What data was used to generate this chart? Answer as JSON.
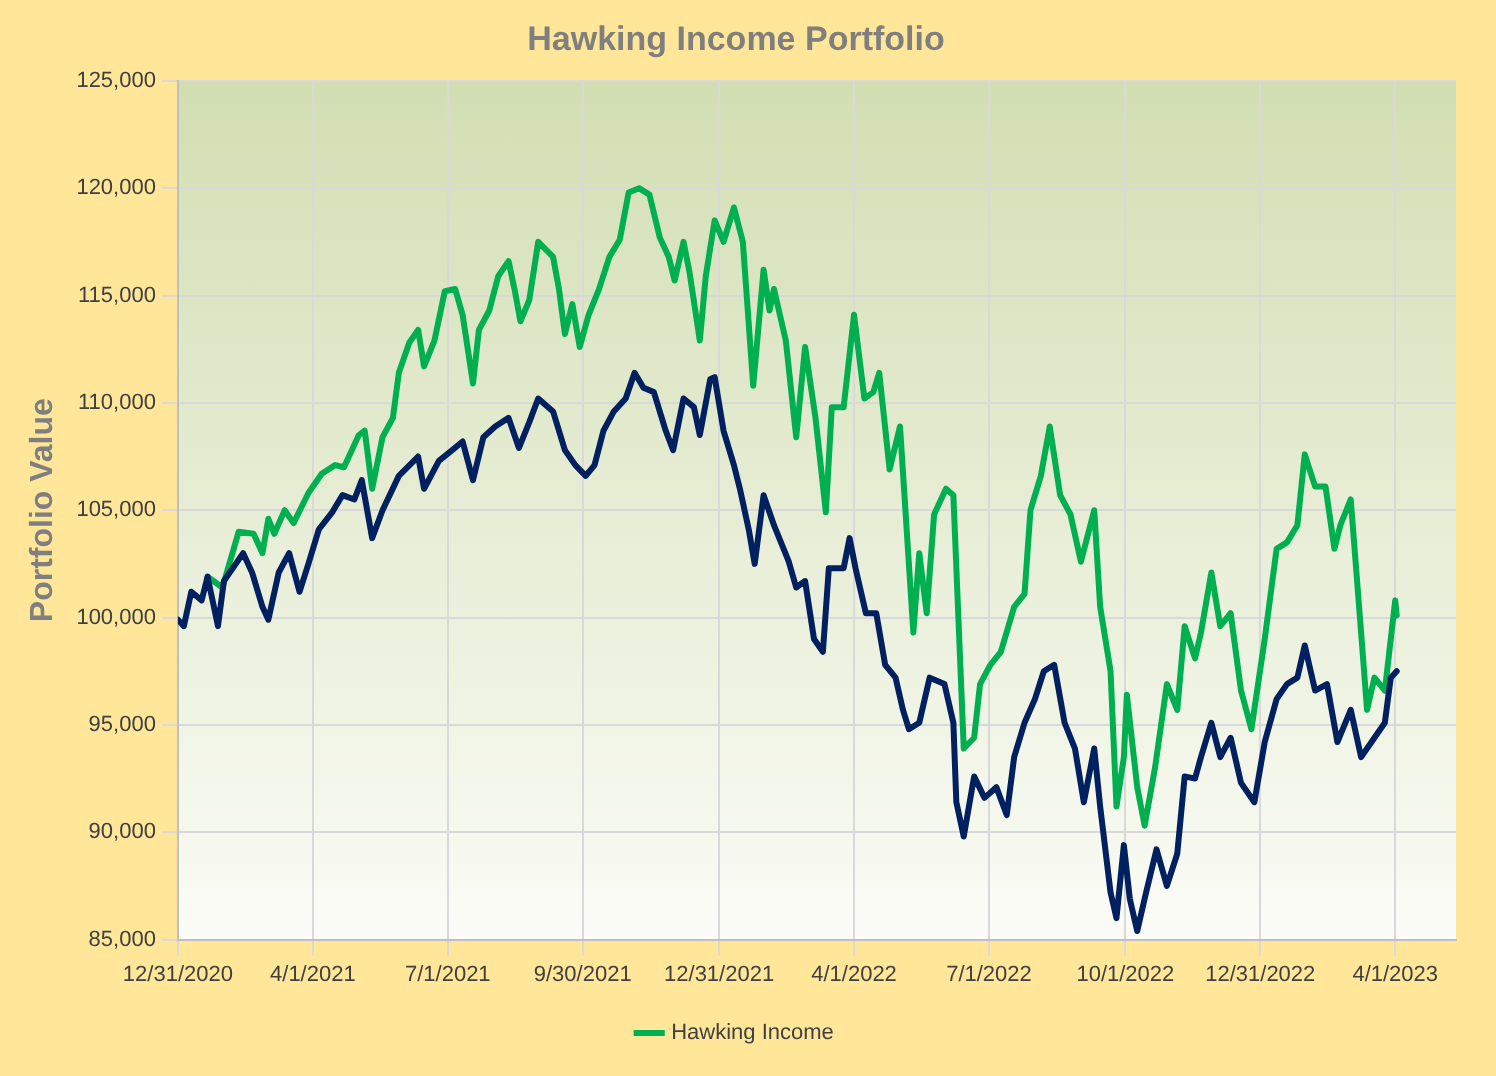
{
  "chart_data": {
    "type": "line",
    "title": "Hawking Income Portfolio",
    "ylabel": "Portfolio Value",
    "xlim": [
      "2020-12-31",
      "2023-05-12"
    ],
    "xticks": [
      {
        "value": "2020-12-31",
        "label": "12/31/2020"
      },
      {
        "value": "2021-04-01",
        "label": "4/1/2021"
      },
      {
        "value": "2021-07-01",
        "label": "7/1/2021"
      },
      {
        "value": "2021-09-30",
        "label": "9/30/2021"
      },
      {
        "value": "2021-12-31",
        "label": "12/31/2021"
      },
      {
        "value": "2022-04-01",
        "label": "4/1/2022"
      },
      {
        "value": "2022-07-01",
        "label": "7/1/2022"
      },
      {
        "value": "2022-10-01",
        "label": "10/1/2022"
      },
      {
        "value": "2022-12-31",
        "label": "12/31/2022"
      },
      {
        "value": "2023-04-01",
        "label": "4/1/2023"
      }
    ],
    "ylim": [
      85000,
      125000
    ],
    "yticks": [
      {
        "value": 85000,
        "label": "85,000"
      },
      {
        "value": 90000,
        "label": "90,000"
      },
      {
        "value": 95000,
        "label": "95,000"
      },
      {
        "value": 100000,
        "label": "100,000"
      },
      {
        "value": 105000,
        "label": "105,000"
      },
      {
        "value": 110000,
        "label": "110,000"
      },
      {
        "value": 115000,
        "label": "115,000"
      },
      {
        "value": 120000,
        "label": "120,000"
      },
      {
        "value": 125000,
        "label": "125,000"
      }
    ],
    "grid": true,
    "legend": "bottom",
    "marker": "none",
    "line_style": "solid",
    "series": [
      {
        "name": "Hawking Income",
        "color": "#00b050",
        "x": [
          "2021-01-20",
          "2021-01-30",
          "2021-02-10",
          "2021-02-20",
          "2021-02-26",
          "2021-03-02",
          "2021-03-06",
          "2021-03-13",
          "2021-03-19",
          "2021-03-29",
          "2021-04-07",
          "2021-04-16",
          "2021-04-22",
          "2021-05-02",
          "2021-05-06",
          "2021-05-11",
          "2021-05-18",
          "2021-05-25",
          "2021-05-29",
          "2021-06-05",
          "2021-06-11",
          "2021-06-15",
          "2021-06-22",
          "2021-06-29",
          "2021-07-06",
          "2021-07-11",
          "2021-07-18",
          "2021-07-22",
          "2021-07-29",
          "2021-08-04",
          "2021-08-11",
          "2021-08-15",
          "2021-08-19",
          "2021-08-25",
          "2021-08-31",
          "2021-09-10",
          "2021-09-14",
          "2021-09-18",
          "2021-09-23",
          "2021-09-28",
          "2021-10-04",
          "2021-10-11",
          "2021-10-18",
          "2021-10-25",
          "2021-10-31",
          "2021-11-07",
          "2021-11-14",
          "2021-11-21",
          "2021-11-27",
          "2021-12-01",
          "2021-12-07",
          "2021-12-11",
          "2021-12-18",
          "2021-12-22",
          "2021-12-28",
          "2022-01-03",
          "2022-01-10",
          "2022-01-16",
          "2022-01-23",
          "2022-01-30",
          "2022-02-03",
          "2022-02-06",
          "2022-02-14",
          "2022-02-21",
          "2022-02-27",
          "2022-03-06",
          "2022-03-13",
          "2022-03-17",
          "2022-03-25",
          "2022-04-01",
          "2022-04-08",
          "2022-04-14",
          "2022-04-18",
          "2022-04-25",
          "2022-05-02",
          "2022-05-11",
          "2022-05-15",
          "2022-05-20",
          "2022-05-25",
          "2022-06-02",
          "2022-06-07",
          "2022-06-14",
          "2022-06-21",
          "2022-06-25",
          "2022-07-02",
          "2022-07-09",
          "2022-07-18",
          "2022-07-25",
          "2022-07-29",
          "2022-08-05",
          "2022-08-11",
          "2022-08-18",
          "2022-08-25",
          "2022-09-01",
          "2022-09-10",
          "2022-09-14",
          "2022-09-21",
          "2022-09-25",
          "2022-09-30",
          "2022-10-02",
          "2022-10-09",
          "2022-10-14",
          "2022-10-21",
          "2022-10-29",
          "2022-11-05",
          "2022-11-10",
          "2022-11-17",
          "2022-11-21",
          "2022-11-28",
          "2022-12-04",
          "2022-12-11",
          "2022-12-18",
          "2022-12-25",
          "2023-01-03",
          "2023-01-11",
          "2023-01-18",
          "2023-01-25",
          "2023-01-30",
          "2023-02-06",
          "2023-02-13",
          "2023-02-19",
          "2023-02-23",
          "2023-03-02",
          "2023-03-09",
          "2023-03-13",
          "2023-03-18",
          "2023-03-25",
          "2023-04-01",
          "2023-04-02"
        ],
        "values": [
          101900,
          101400,
          104000,
          103900,
          103000,
          104600,
          103900,
          105000,
          104400,
          105800,
          106700,
          107100,
          107000,
          108500,
          108700,
          106000,
          108400,
          109300,
          111400,
          112800,
          113400,
          111700,
          112900,
          115200,
          115300,
          114100,
          110900,
          113400,
          114300,
          115900,
          116600,
          115300,
          113800,
          114800,
          117500,
          116800,
          115300,
          113200,
          114600,
          112600,
          114100,
          115300,
          116800,
          117600,
          119800,
          120000,
          119700,
          117700,
          116800,
          115700,
          117500,
          116100,
          112900,
          115900,
          118500,
          117500,
          119100,
          117500,
          110800,
          116200,
          114300,
          115300,
          112900,
          108400,
          112600,
          109300,
          104900,
          109800,
          109800,
          114100,
          110200,
          110500,
          111400,
          106900,
          108900,
          99300,
          103000,
          100200,
          104800,
          106000,
          105700,
          93900,
          94400,
          96900,
          97800,
          98400,
          100500,
          101100,
          105000,
          106600,
          108900,
          105700,
          104800,
          102600,
          105000,
          100500,
          97500,
          91200,
          93500,
          96400,
          92100,
          90300,
          93000,
          96900,
          95700,
          99600,
          98100,
          99300,
          102100,
          99600,
          100200,
          96600,
          94800,
          99000,
          103200,
          103500,
          104300,
          107600,
          106100,
          106100,
          103200,
          104300,
          105500,
          99300,
          95700,
          97200,
          96600,
          100800,
          100100
        ]
      },
      {
        "color": "#002060",
        "x": [
          "2020-12-31",
          "2021-01-04",
          "2021-01-09",
          "2021-01-16",
          "2021-01-20",
          "2021-01-27",
          "2021-01-31",
          "2021-02-13",
          "2021-02-19",
          "2021-02-26",
          "2021-03-02",
          "2021-03-09",
          "2021-03-16",
          "2021-03-23",
          "2021-03-29",
          "2021-04-05",
          "2021-04-14",
          "2021-04-21",
          "2021-04-29",
          "2021-05-04",
          "2021-05-11",
          "2021-05-18",
          "2021-05-29",
          "2021-06-11",
          "2021-06-15",
          "2021-06-25",
          "2021-07-04",
          "2021-07-11",
          "2021-07-18",
          "2021-07-25",
          "2021-08-02",
          "2021-08-11",
          "2021-08-18",
          "2021-08-25",
          "2021-08-31",
          "2021-09-10",
          "2021-09-18",
          "2021-09-25",
          "2021-10-02",
          "2021-10-08",
          "2021-10-14",
          "2021-10-21",
          "2021-10-29",
          "2021-11-04",
          "2021-11-10",
          "2021-11-17",
          "2021-11-25",
          "2021-11-30",
          "2021-12-07",
          "2021-12-14",
          "2021-12-18",
          "2021-12-25",
          "2021-12-28",
          "2022-01-03",
          "2022-01-10",
          "2022-01-14",
          "2022-01-20",
          "2022-01-24",
          "2022-01-30",
          "2022-02-06",
          "2022-02-16",
          "2022-02-21",
          "2022-02-27",
          "2022-03-05",
          "2022-03-11",
          "2022-03-15",
          "2022-03-25",
          "2022-03-29",
          "2022-04-02",
          "2022-04-09",
          "2022-04-16",
          "2022-04-22",
          "2022-04-29",
          "2022-05-04",
          "2022-05-08",
          "2022-05-15",
          "2022-05-22",
          "2022-06-01",
          "2022-06-07",
          "2022-06-09",
          "2022-06-14",
          "2022-06-21",
          "2022-06-28",
          "2022-07-06",
          "2022-07-13",
          "2022-07-18",
          "2022-07-25",
          "2022-08-01",
          "2022-08-07",
          "2022-08-14",
          "2022-08-21",
          "2022-08-28",
          "2022-09-03",
          "2022-09-10",
          "2022-09-14",
          "2022-09-21",
          "2022-09-25",
          "2022-09-30",
          "2022-10-04",
          "2022-10-09",
          "2022-10-15",
          "2022-10-22",
          "2022-10-29",
          "2022-11-05",
          "2022-11-10",
          "2022-11-17",
          "2022-11-21",
          "2022-11-28",
          "2022-12-04",
          "2022-12-11",
          "2022-12-18",
          "2022-12-27",
          "2023-01-03",
          "2023-01-11",
          "2023-01-18",
          "2023-01-25",
          "2023-01-30",
          "2023-02-06",
          "2023-02-14",
          "2023-02-21",
          "2023-03-02",
          "2023-03-09",
          "2023-03-18",
          "2023-03-25",
          "2023-03-29",
          "2023-04-02"
        ],
        "values": [
          99900,
          99600,
          101200,
          100800,
          101900,
          99600,
          101700,
          103000,
          102100,
          100500,
          99900,
          102100,
          103000,
          101200,
          102500,
          104100,
          104900,
          105700,
          105500,
          106400,
          103700,
          105000,
          106600,
          107500,
          106000,
          107300,
          107800,
          108200,
          106400,
          108400,
          108900,
          109300,
          107900,
          109100,
          110200,
          109600,
          107800,
          107100,
          106600,
          107100,
          108700,
          109600,
          110200,
          111400,
          110700,
          110500,
          108700,
          107800,
          110200,
          109800,
          108500,
          111100,
          111200,
          108700,
          107100,
          106000,
          104100,
          102500,
          105700,
          104300,
          102600,
          101400,
          101700,
          99000,
          98400,
          102300,
          102300,
          103700,
          102300,
          100200,
          100200,
          97800,
          97200,
          95700,
          94800,
          95100,
          97200,
          96900,
          95100,
          91400,
          89800,
          92600,
          91600,
          92100,
          90800,
          93500,
          95100,
          96200,
          97500,
          97800,
          95100,
          93900,
          91400,
          93900,
          91200,
          87200,
          86000,
          89400,
          86900,
          85400,
          87200,
          89200,
          87500,
          89000,
          92600,
          92500,
          93500,
          95100,
          93500,
          94400,
          92300,
          91400,
          94200,
          96200,
          96900,
          97200,
          98700,
          96600,
          96900,
          94200,
          95700,
          93500,
          94400,
          95100,
          97200,
          97500
        ]
      }
    ]
  }
}
